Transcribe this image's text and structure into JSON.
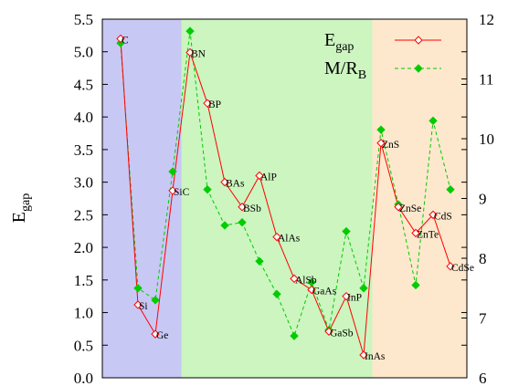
{
  "colors": {
    "band_1": "#c8c8f5",
    "band_2": "#ccf5c0",
    "band_3": "#fde8cd",
    "egap": "#ff0000",
    "mrb": "#00cc00"
  },
  "chart_data": {
    "type": "line",
    "x": [
      "C",
      "Si",
      "Ge",
      "SiC",
      "BN",
      "BP",
      "BAs",
      "BSb",
      "AlP",
      "AlAs",
      "AlSb",
      "GaAs",
      "GaSb",
      "InP",
      "InAs",
      "ZnS",
      "ZnSe",
      "ZnTe",
      "CdS",
      "CdSe"
    ],
    "y_left": {
      "label": "E",
      "label_sub": "gap",
      "lim": [
        0.0,
        5.5
      ],
      "ticks": [
        "0.0",
        "0.5",
        "1.0",
        "1.5",
        "2.0",
        "2.5",
        "3.0",
        "3.5",
        "4.0",
        "4.5",
        "5.0",
        "5.5"
      ]
    },
    "y_right": {
      "lim": [
        6,
        12
      ],
      "ticks": [
        "6",
        "7",
        "8",
        "9",
        "10",
        "11",
        "12"
      ]
    },
    "bands": [
      {
        "from": 0,
        "to": 3,
        "color": "#c8c8f5"
      },
      {
        "from": 4,
        "to": 14,
        "color": "#ccf5c0"
      },
      {
        "from": 15,
        "to": 19,
        "color": "#fde8cd"
      }
    ],
    "series": [
      {
        "name": "E",
        "name_sub": "gap",
        "axis": "left",
        "color": "#ff0000",
        "marker": "open-diamond",
        "line": "solid",
        "values": [
          5.2,
          1.12,
          0.67,
          2.87,
          4.99,
          4.21,
          3.0,
          2.62,
          3.1,
          2.16,
          1.52,
          1.35,
          0.71,
          1.25,
          0.35,
          3.6,
          2.62,
          2.22,
          2.5,
          1.71
        ]
      },
      {
        "name": "M/R",
        "name_sub": "B",
        "axis": "right",
        "color": "#00cc00",
        "marker": "filled-diamond",
        "line": "dashed",
        "values": [
          11.6,
          7.5,
          7.3,
          9.45,
          11.8,
          9.15,
          8.55,
          8.6,
          7.95,
          7.4,
          6.7,
          7.6,
          6.8,
          8.45,
          7.5,
          10.15,
          8.9,
          7.55,
          10.3,
          9.15
        ]
      }
    ],
    "legend": {
      "position": "top-right"
    }
  }
}
